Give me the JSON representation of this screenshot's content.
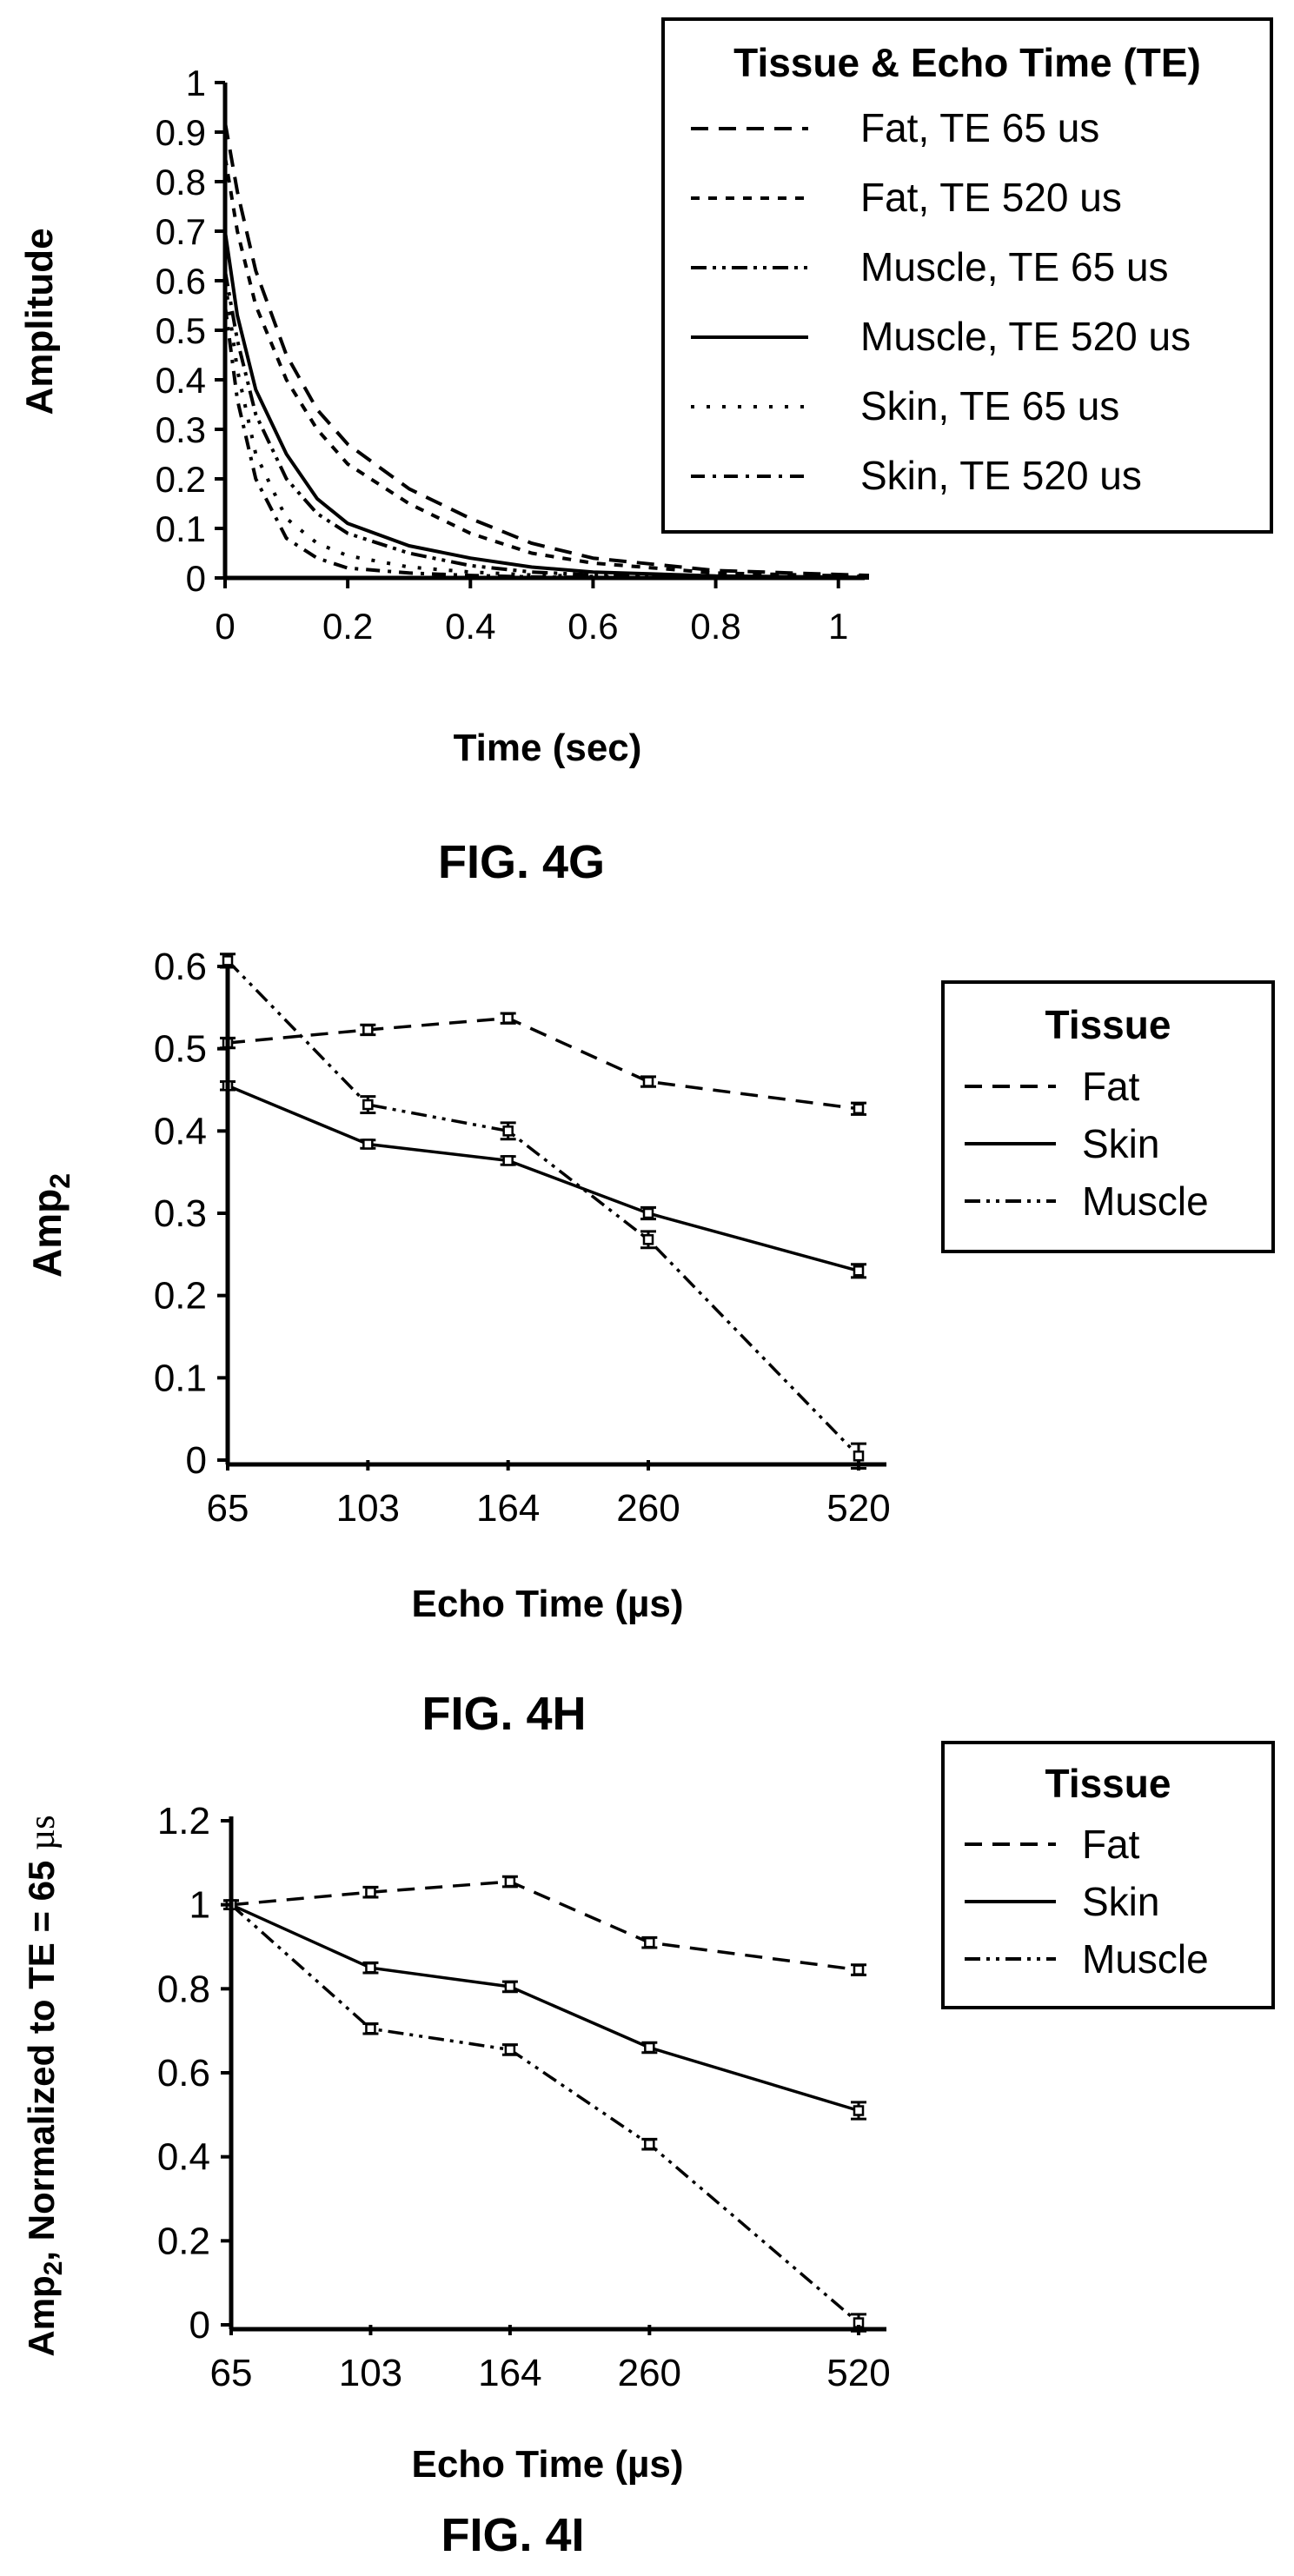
{
  "colors": {
    "ink": "#000000",
    "background": "#ffffff"
  },
  "chart_data": [
    {
      "type": "line",
      "figure_label": "FIG. 4G",
      "xlabel": "Time (sec)",
      "ylabel": "Amplitude",
      "xlim": [
        0,
        1.05
      ],
      "ylim": [
        0,
        1
      ],
      "x_ticks": [
        "0",
        "0.2",
        "0.4",
        "0.6",
        "0.8",
        "1"
      ],
      "y_ticks": [
        "0",
        "0.1",
        "0.2",
        "0.3",
        "0.4",
        "0.5",
        "0.6",
        "0.7",
        "0.8",
        "0.9",
        "1"
      ],
      "grid": false,
      "legend": {
        "title": "Tissue & Echo Time (TE)",
        "position": "top-right",
        "entries": [
          "Fat, TE 65 us",
          "Fat, TE 520 us",
          "Muscle, TE 65 us",
          "Muscle, TE 520 us",
          "Skin, TE 65 us",
          "Skin, TE 520 us"
        ]
      },
      "curve_x": [
        0,
        0.02,
        0.05,
        0.1,
        0.15,
        0.2,
        0.3,
        0.4,
        0.5,
        0.6,
        0.8,
        1.05
      ],
      "series": [
        {
          "name": "Fat, TE 65 us",
          "style": "long-dash",
          "values": [
            0.92,
            0.78,
            0.62,
            0.45,
            0.34,
            0.27,
            0.18,
            0.12,
            0.07,
            0.04,
            0.015,
            0.005
          ]
        },
        {
          "name": "Fat, TE 520 us",
          "style": "short-dash",
          "values": [
            0.85,
            0.7,
            0.55,
            0.4,
            0.3,
            0.23,
            0.15,
            0.09,
            0.05,
            0.03,
            0.01,
            0.003
          ]
        },
        {
          "name": "Muscle, TE 65 us",
          "style": "dash-dot-dot",
          "values": [
            0.62,
            0.48,
            0.33,
            0.2,
            0.13,
            0.09,
            0.05,
            0.025,
            0.012,
            0.006,
            0.002,
            0
          ]
        },
        {
          "name": "Muscle, TE 520 us",
          "style": "solid",
          "values": [
            0.7,
            0.53,
            0.38,
            0.25,
            0.16,
            0.11,
            0.065,
            0.04,
            0.022,
            0.012,
            0.004,
            0.001
          ]
        },
        {
          "name": "Skin, TE 65 us",
          "style": "dotted",
          "values": [
            0.6,
            0.42,
            0.25,
            0.12,
            0.07,
            0.045,
            0.022,
            0.012,
            0.006,
            0.003,
            0.001,
            0
          ]
        },
        {
          "name": "Skin, TE 520 us",
          "style": "dash-dot",
          "values": [
            0.55,
            0.36,
            0.2,
            0.08,
            0.04,
            0.02,
            0.01,
            0.005,
            0.002,
            0.001,
            0,
            0
          ]
        }
      ]
    },
    {
      "type": "line",
      "figure_label": "FIG. 4H",
      "xlabel": "Echo Time (µs)",
      "ylabel": "Amp",
      "ylabel_subscript": "2",
      "categories": [
        "65",
        "103",
        "164",
        "260",
        "520"
      ],
      "x_positions": [
        0,
        1,
        2,
        3,
        4.5
      ],
      "ylim": [
        0,
        0.6
      ],
      "y_ticks": [
        "0",
        "0.1",
        "0.2",
        "0.3",
        "0.4",
        "0.5",
        "0.6"
      ],
      "grid": false,
      "legend": {
        "title": "Tissue",
        "position": "top-right",
        "entries": [
          "Fat",
          "Skin",
          "Muscle"
        ]
      },
      "series": [
        {
          "name": "Fat",
          "style": "long-dash",
          "values": [
            0.507,
            0.523,
            0.537,
            0.46,
            0.427
          ],
          "errors": [
            0.006,
            0.006,
            0.006,
            0.006,
            0.007
          ]
        },
        {
          "name": "Skin",
          "style": "solid",
          "values": [
            0.455,
            0.384,
            0.364,
            0.3,
            0.23
          ],
          "errors": [
            0.005,
            0.005,
            0.005,
            0.007,
            0.008
          ]
        },
        {
          "name": "Muscle",
          "style": "dash-dot-dot",
          "values": [
            0.607,
            0.432,
            0.4,
            0.268,
            0.005
          ],
          "errors": [
            0.008,
            0.01,
            0.01,
            0.01,
            0.015
          ]
        }
      ]
    },
    {
      "type": "line",
      "figure_label": "FIG. 4I",
      "xlabel": "Echo Time (µs)",
      "ylabel_parts": [
        "Amp",
        "2",
        ", Normalized to TE = 65 ",
        "µs"
      ],
      "categories": [
        "65",
        "103",
        "164",
        "260",
        "520"
      ],
      "x_positions": [
        0,
        1,
        2,
        3,
        4.5
      ],
      "ylim": [
        0,
        1.2
      ],
      "y_ticks": [
        "0",
        "0.2",
        "0.4",
        "0.6",
        "0.8",
        "1",
        "1.2"
      ],
      "grid": false,
      "legend": {
        "title": "Tissue",
        "position": "top-right",
        "entries": [
          "Fat",
          "Skin",
          "Muscle"
        ]
      },
      "series": [
        {
          "name": "Fat",
          "style": "long-dash",
          "values": [
            1.0,
            1.03,
            1.055,
            0.91,
            0.845
          ],
          "errors": [
            0.01,
            0.012,
            0.012,
            0.012,
            0.012
          ]
        },
        {
          "name": "Skin",
          "style": "solid",
          "values": [
            1.0,
            0.85,
            0.805,
            0.66,
            0.51
          ],
          "errors": [
            0.01,
            0.012,
            0.012,
            0.012,
            0.02
          ]
        },
        {
          "name": "Muscle",
          "style": "dash-dot-dot",
          "values": [
            1.0,
            0.705,
            0.655,
            0.43,
            0.005
          ],
          "errors": [
            0.01,
            0.012,
            0.012,
            0.012,
            0.02
          ]
        }
      ]
    }
  ]
}
